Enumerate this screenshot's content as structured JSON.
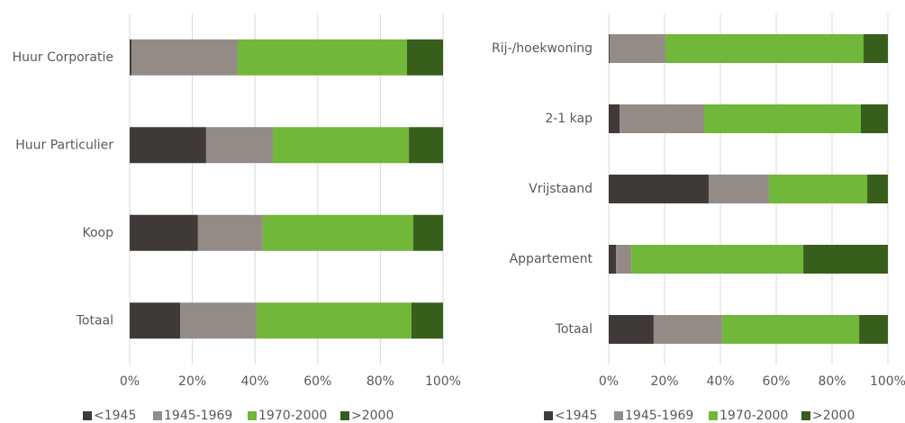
{
  "chart_data": [
    {
      "type": "bar",
      "categories": [
        "Huur Corporatie",
        "Huur Particulier",
        "Koop",
        "Totaal"
      ],
      "series": [
        {
          "name": "<1945",
          "color": "#3f3a38",
          "values": [
            0.6,
            24.4,
            21.8,
            16.1
          ]
        },
        {
          "name": "1945-1969",
          "color": "#958b86",
          "values": [
            33.9,
            21.3,
            20.7,
            24.4
          ]
        },
        {
          "name": "1970-2000",
          "color": "#70b73a",
          "values": [
            54,
            43.4,
            48,
            49.4
          ]
        },
        {
          "name": ">2000",
          "color": "#375f1b",
          "values": [
            11.5,
            10.9,
            9.5,
            10.1
          ]
        }
      ],
      "xlim": [
        0,
        100
      ],
      "xticks": [
        {
          "value": 0,
          "label": "0%"
        },
        {
          "value": 20,
          "label": "20%"
        },
        {
          "value": 40,
          "label": "40%"
        },
        {
          "value": 60,
          "label": "60%"
        },
        {
          "value": 80,
          "label": "80%"
        },
        {
          "value": 100,
          "label": "100%"
        }
      ],
      "grid": true
    },
    {
      "type": "bar",
      "categories": [
        "Rij-/hoekwoning",
        "2-1 kap",
        "Vrijstaand",
        "Appartement",
        "Totaal"
      ],
      "series": [
        {
          "name": "<1945",
          "color": "#3f3a38",
          "values": [
            0.3,
            3.9,
            35.8,
            2.6,
            16.1
          ]
        },
        {
          "name": "1945-1969",
          "color": "#958b86",
          "values": [
            20,
            30.3,
            21.6,
            5.5,
            24.5
          ]
        },
        {
          "name": "1970-2000",
          "color": "#70b73a",
          "values": [
            71,
            56.1,
            35.2,
            61.6,
            49.1
          ]
        },
        {
          "name": ">2000",
          "color": "#375f1b",
          "values": [
            8.7,
            9.7,
            7.4,
            30.3,
            10.3
          ]
        }
      ],
      "xlim": [
        0,
        100
      ],
      "xticks": [
        {
          "value": 0,
          "label": "0%"
        },
        {
          "value": 20,
          "label": "20%"
        },
        {
          "value": 40,
          "label": "40%"
        },
        {
          "value": 60,
          "label": "60%"
        },
        {
          "value": 80,
          "label": "80%"
        },
        {
          "value": 100,
          "label": "100%"
        }
      ],
      "grid": true
    }
  ]
}
